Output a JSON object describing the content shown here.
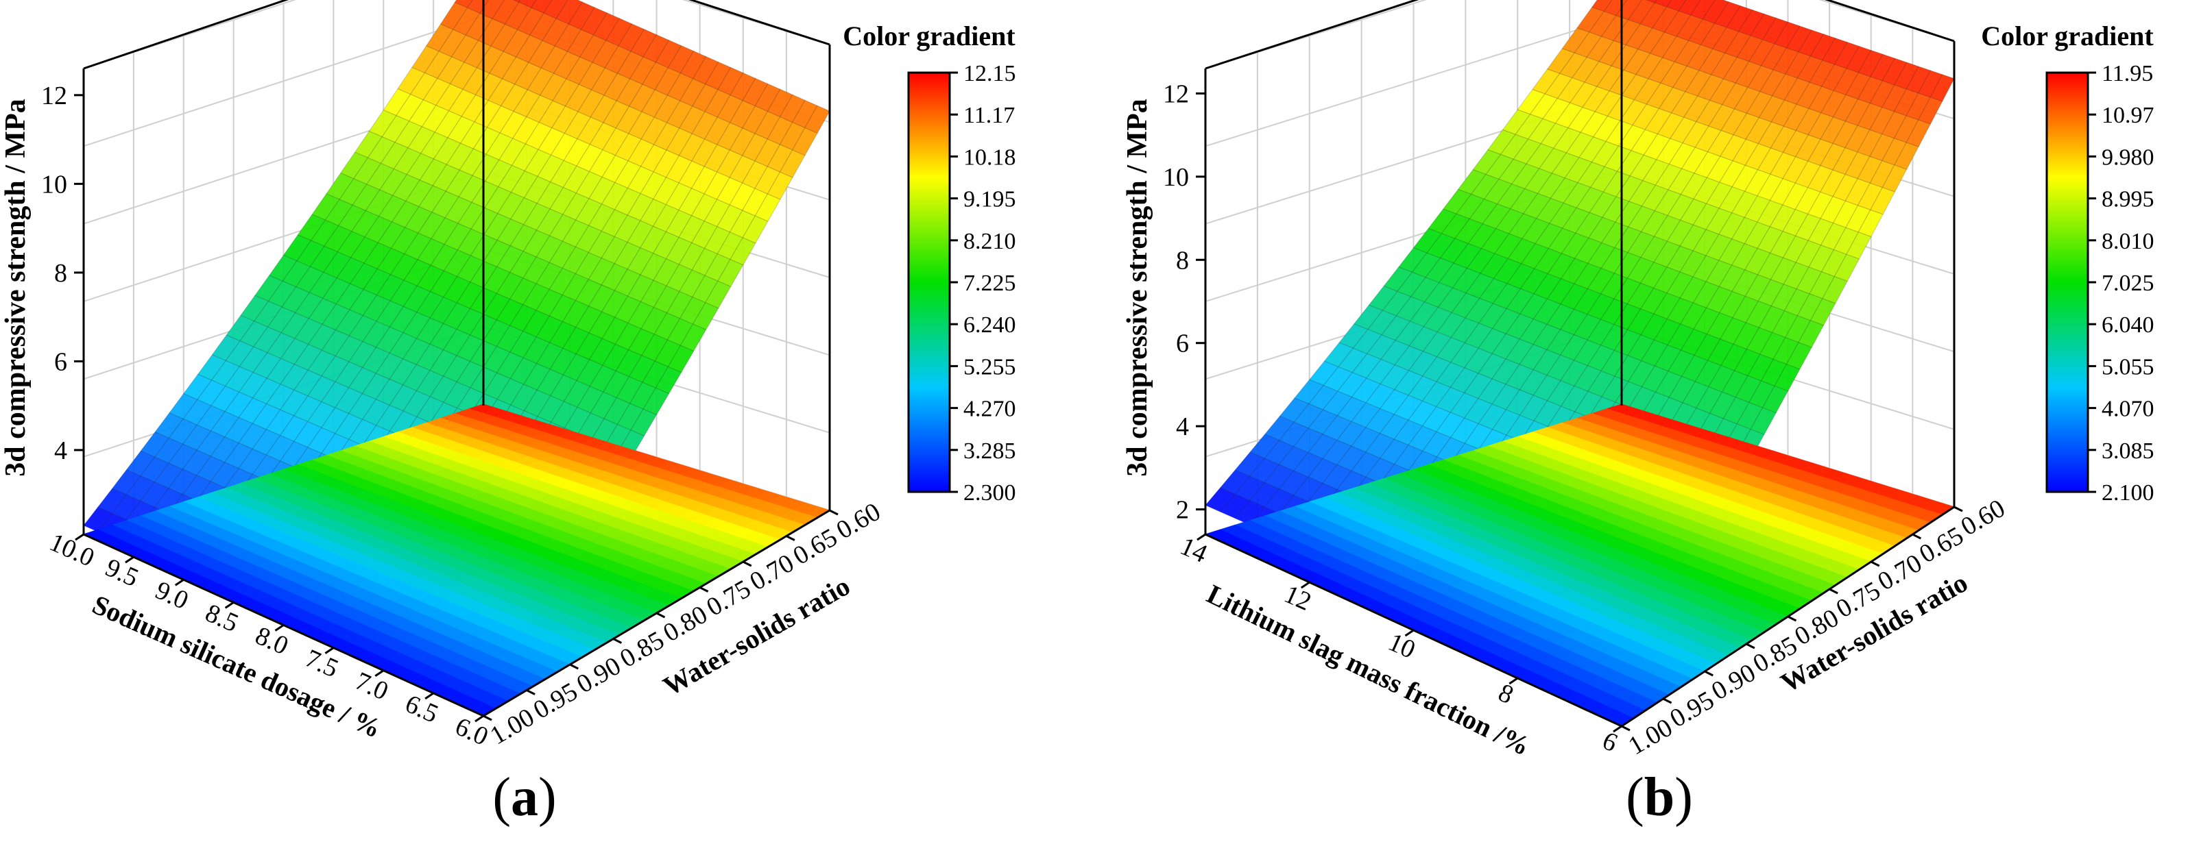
{
  "chart_data": [
    {
      "type": "surface3d",
      "panel_label": "a",
      "zlabel": "3d compressive strength / MPa",
      "xlabel": "Sodium silicate dosage / %",
      "ylabel": "Water-solids ratio",
      "x_ticks": [
        "10.0",
        "9.5",
        "9.0",
        "8.5",
        "8.0",
        "7.5",
        "7.0",
        "6.5",
        "6.0"
      ],
      "y_ticks": [
        "1.00",
        "0.95",
        "0.90",
        "0.85",
        "0.80",
        "0.75",
        "0.70",
        "0.65",
        "0.60"
      ],
      "z_ticks": [
        "4",
        "6",
        "8",
        "10",
        "12"
      ],
      "z_range": [
        2.3,
        12.15
      ],
      "x_range": [
        10.0,
        6.0
      ],
      "y_range": [
        1.0,
        0.6
      ],
      "colorbar": {
        "title": "Color gradient",
        "ticks": [
          "12.15",
          "11.17",
          "10.18",
          "9.195",
          "8.210",
          "7.225",
          "6.240",
          "5.255",
          "4.270",
          "3.285",
          "2.300"
        ]
      },
      "surface": {
        "corner_x_min_y_min": 2.3,
        "corner_x_max_y_min": 2.4,
        "corner_x_min_y_max": 12.15,
        "corner_x_max_y_max": 11.1
      }
    },
    {
      "type": "surface3d",
      "panel_label": "b",
      "zlabel": "3d compressive strength / MPa",
      "xlabel": "Lithium slag mass fraction /%",
      "ylabel": "Water-solids ratio",
      "x_ticks": [
        "14",
        "12",
        "10",
        "8",
        "6"
      ],
      "y_ticks": [
        "1.00",
        "0.95",
        "0.90",
        "0.85",
        "0.80",
        "0.75",
        "0.70",
        "0.65",
        "0.60"
      ],
      "z_ticks": [
        "2",
        "4",
        "6",
        "8",
        "10",
        "12"
      ],
      "z_range": [
        2.1,
        11.95
      ],
      "x_range": [
        14,
        6
      ],
      "y_range": [
        1.0,
        0.6
      ],
      "colorbar": {
        "title": "Color gradient",
        "ticks": [
          "11.95",
          "10.97",
          "9.980",
          "8.995",
          "8.010",
          "7.025",
          "6.040",
          "5.055",
          "4.070",
          "3.085",
          "2.100"
        ]
      },
      "surface": {
        "corner_x_min_y_min": 2.1,
        "corner_x_max_y_min": 2.3,
        "corner_x_min_y_max": 11.95,
        "corner_x_max_y_max": 11.7
      }
    }
  ]
}
